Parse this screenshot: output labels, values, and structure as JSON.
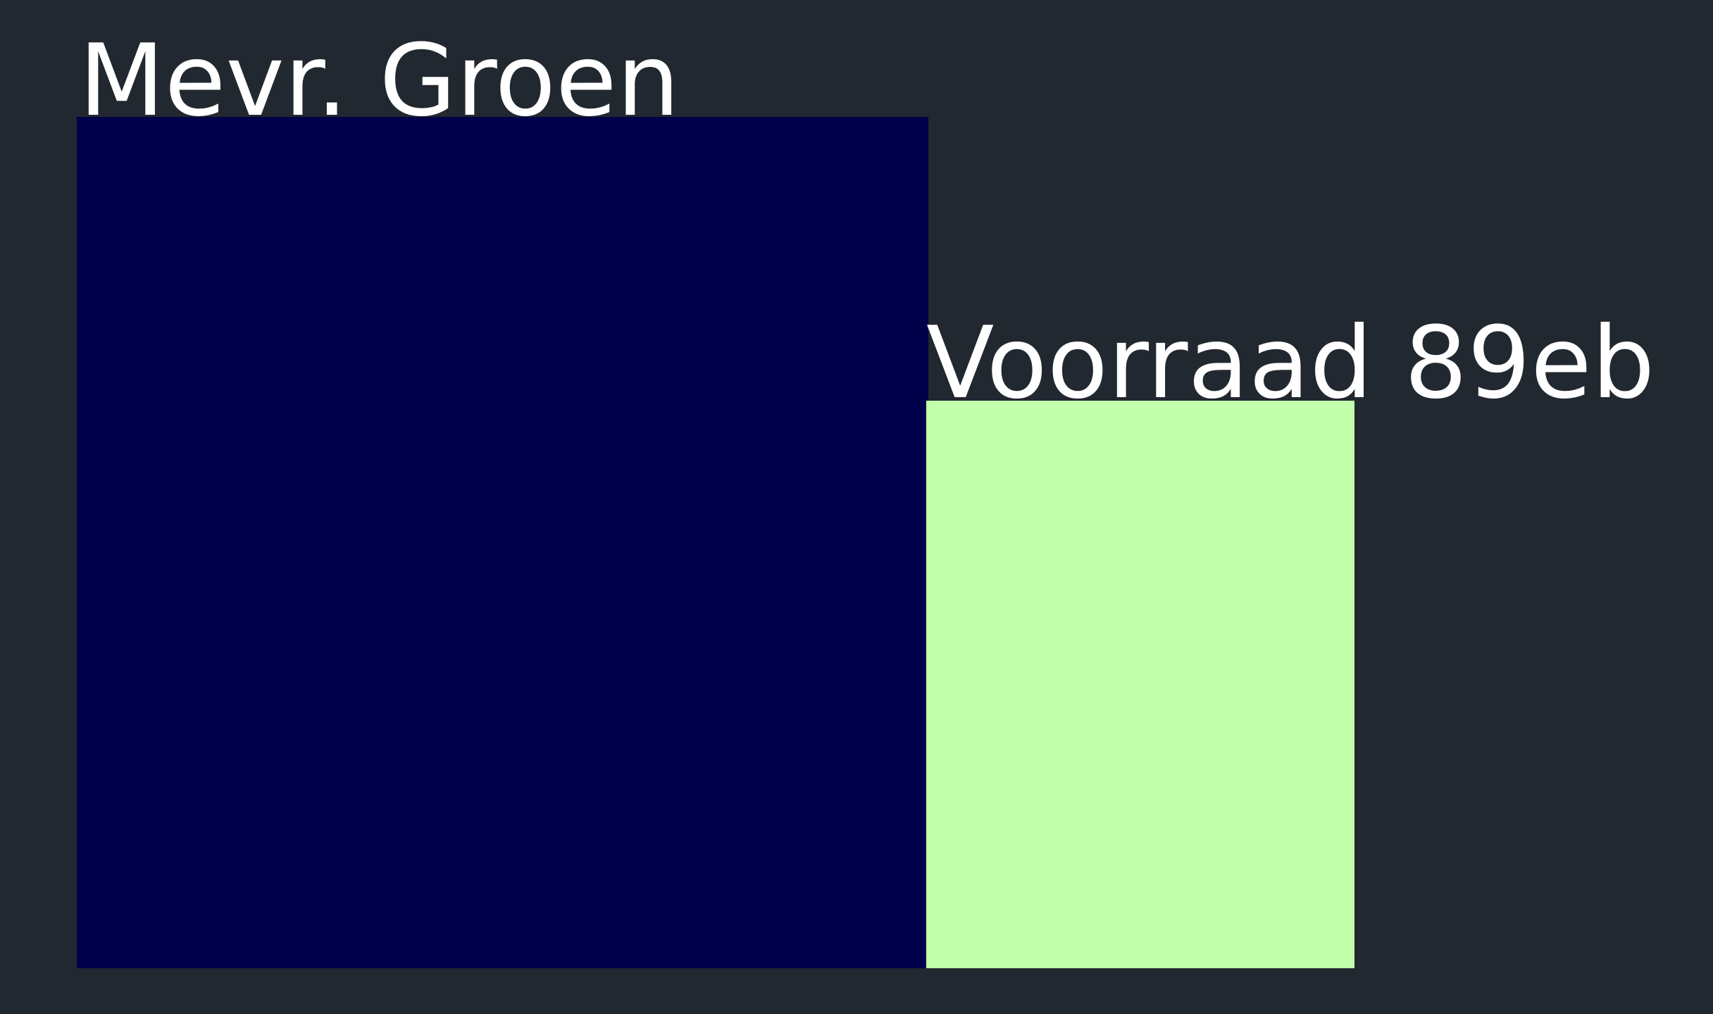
{
  "colors": {
    "background": "#22282f",
    "block_1": "#00004a",
    "block_2": "#c1ffaa",
    "text": "#ffffff"
  },
  "labels": {
    "label_1": "Mevr. Groen",
    "label_2": "Voorraad 89eb"
  }
}
